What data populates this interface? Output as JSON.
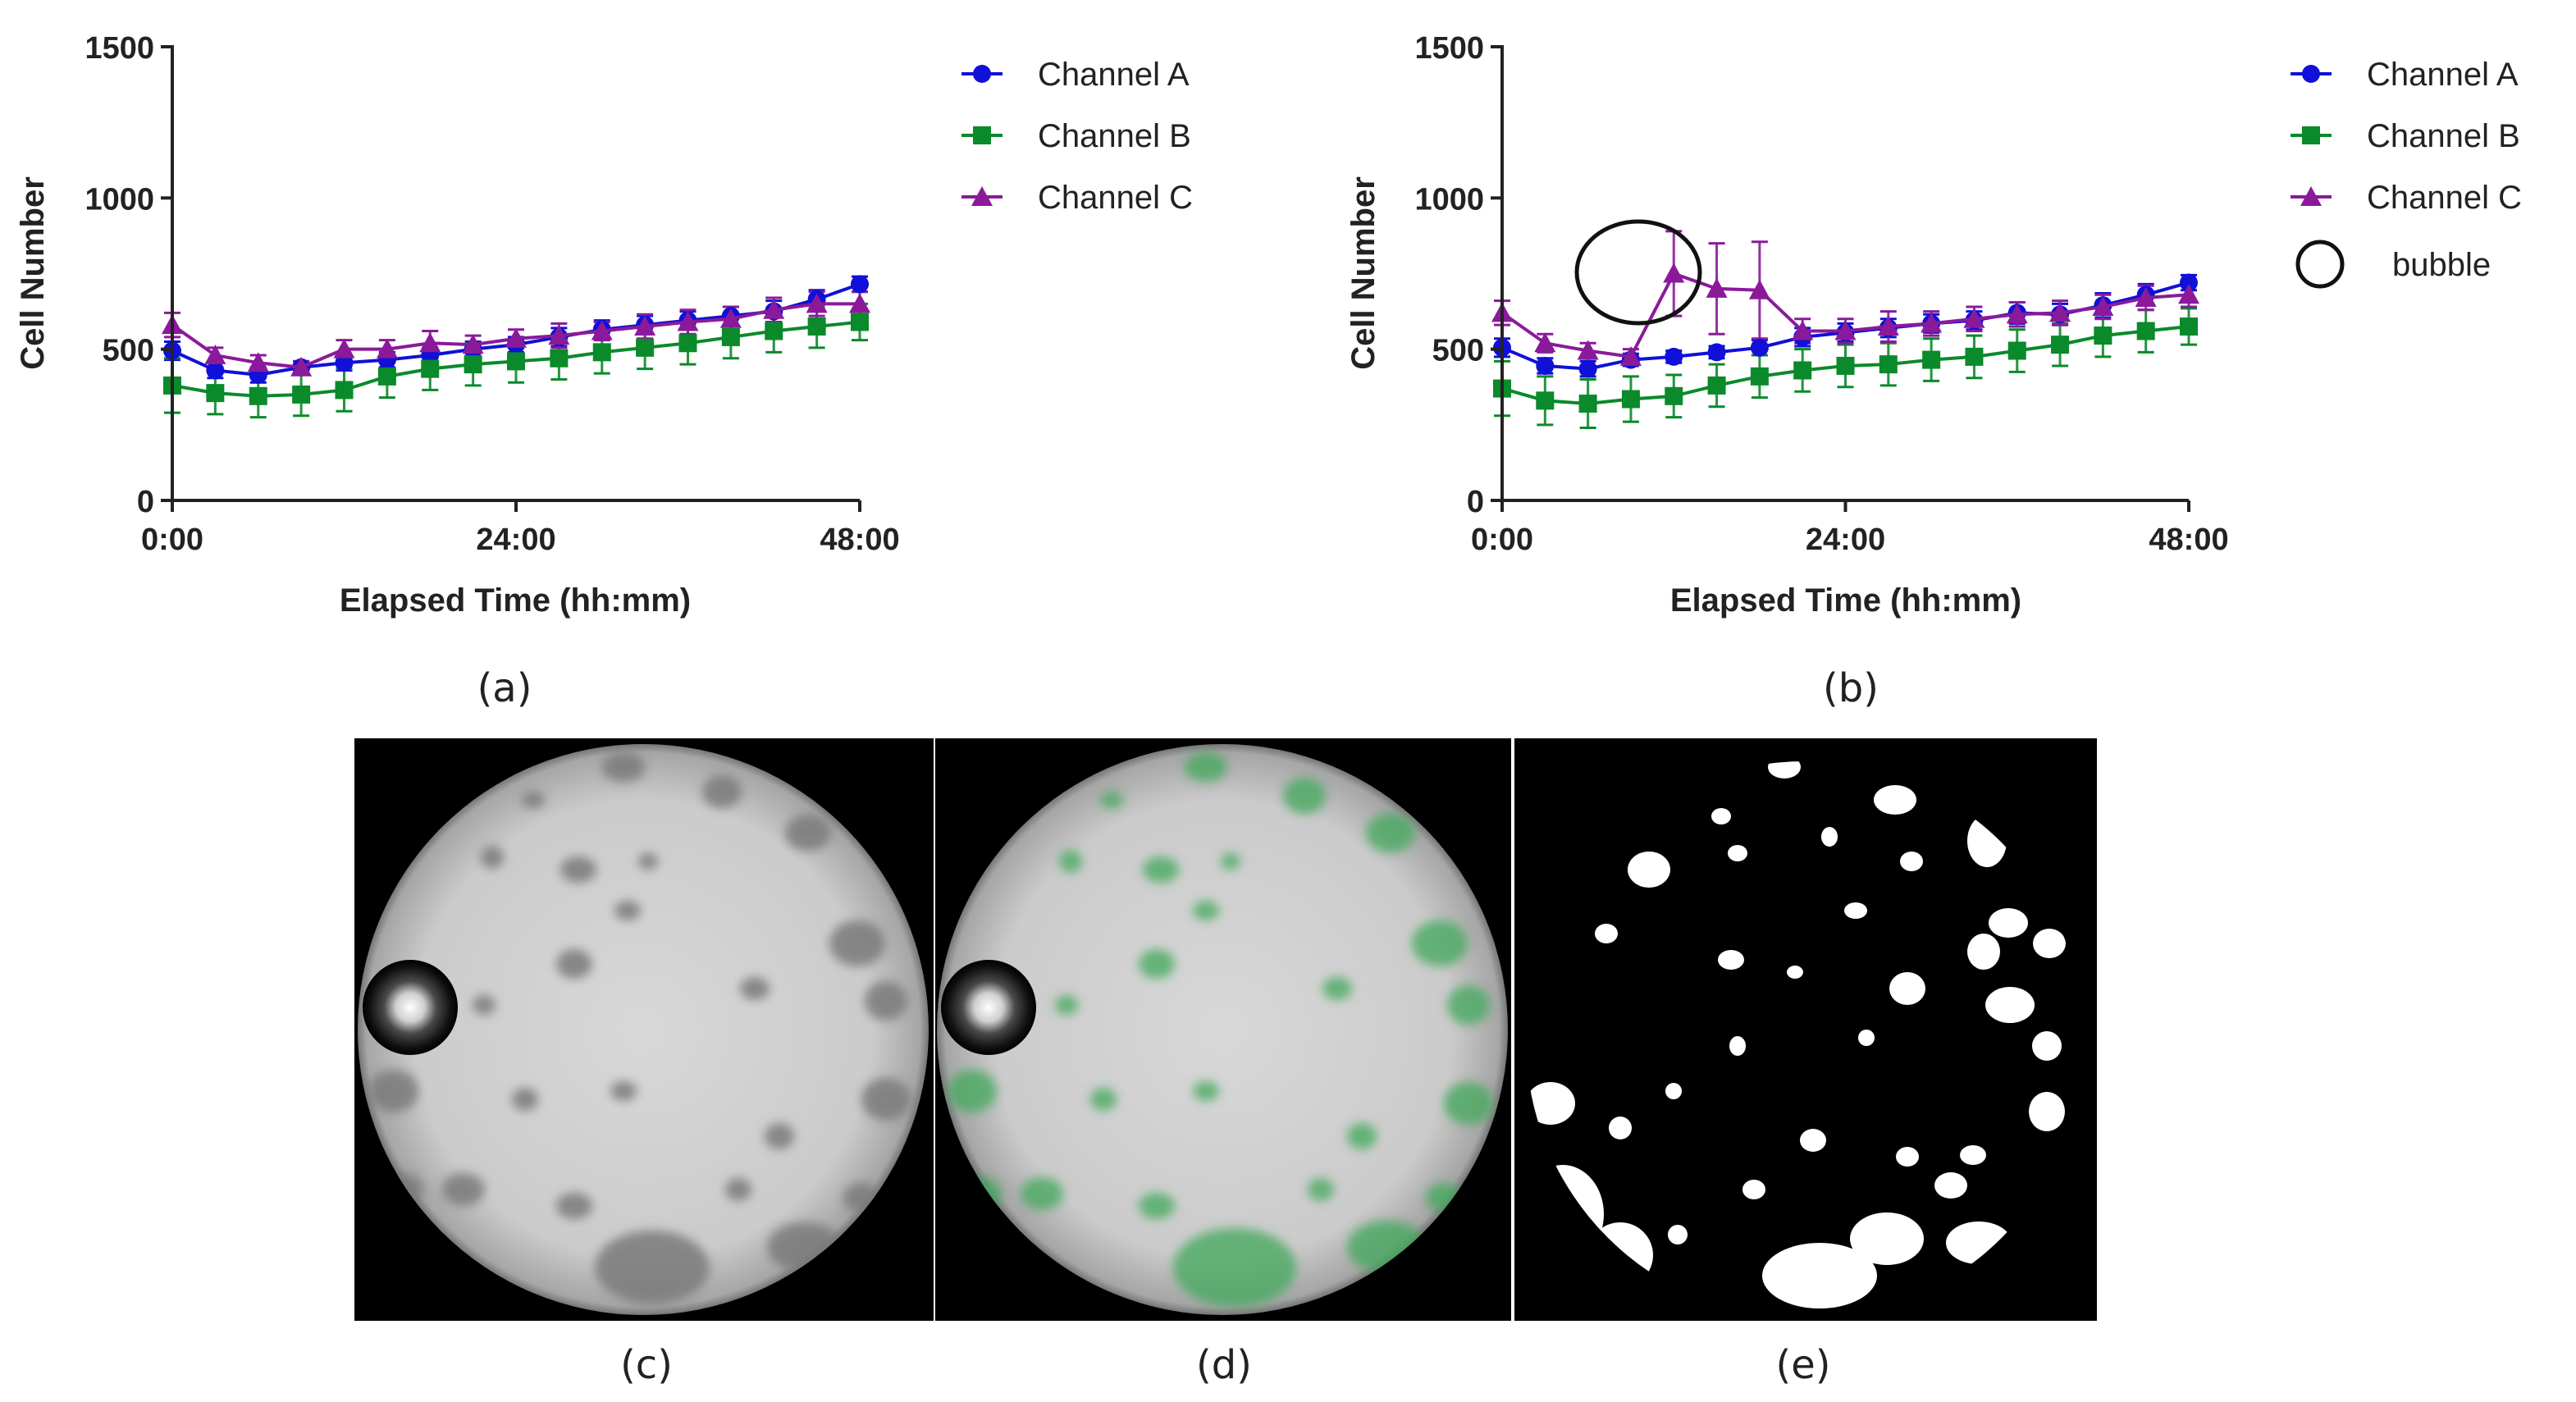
{
  "chart_data": [
    {
      "type": "line",
      "panel_label": "(a)",
      "xlabel": "Elapsed Time (hh:mm)",
      "ylabel": "Cell Number",
      "xlim": [
        0,
        48
      ],
      "ylim": [
        0,
        1500
      ],
      "xticks": [
        0,
        24,
        48
      ],
      "xtick_labels": [
        "0:00",
        "24:00",
        "48:00"
      ],
      "yticks": [
        0,
        500,
        1000,
        1500
      ],
      "ytick_labels": [
        "0",
        "500",
        "1000",
        "1500"
      ],
      "legend_position": "right",
      "x": [
        0,
        3,
        6,
        9,
        12,
        15,
        18,
        21,
        24,
        27,
        30,
        33,
        36,
        39,
        42,
        45,
        48
      ],
      "series": [
        {
          "name": "Channel A",
          "color": "#1010d8",
          "marker": "circle",
          "values": [
            495,
            430,
            415,
            440,
            455,
            465,
            480,
            500,
            515,
            540,
            565,
            580,
            595,
            610,
            625,
            665,
            715
          ],
          "errors": [
            30,
            25,
            25,
            20,
            25,
            25,
            25,
            25,
            25,
            30,
            30,
            30,
            30,
            30,
            35,
            30,
            25
          ]
        },
        {
          "name": "Channel B",
          "color": "#0a8a2a",
          "marker": "square",
          "values": [
            380,
            355,
            345,
            350,
            365,
            410,
            435,
            450,
            460,
            470,
            490,
            505,
            520,
            540,
            560,
            575,
            590
          ],
          "errors": [
            90,
            70,
            70,
            70,
            70,
            70,
            70,
            70,
            70,
            70,
            70,
            70,
            70,
            70,
            70,
            70,
            60
          ]
        },
        {
          "name": "Channel C",
          "color": "#8a1a9a",
          "marker": "triangle",
          "values": [
            580,
            480,
            455,
            440,
            500,
            500,
            520,
            515,
            535,
            545,
            560,
            575,
            590,
            600,
            630,
            650,
            650
          ],
          "errors": [
            40,
            25,
            25,
            20,
            30,
            30,
            40,
            30,
            30,
            40,
            30,
            40,
            40,
            40,
            40,
            40,
            40
          ]
        }
      ]
    },
    {
      "type": "line",
      "panel_label": "(b)",
      "xlabel": "Elapsed Time (hh:mm)",
      "ylabel": "Cell Number",
      "xlim": [
        0,
        48
      ],
      "ylim": [
        0,
        1500
      ],
      "xticks": [
        0,
        24,
        48
      ],
      "xtick_labels": [
        "0:00",
        "24:00",
        "48:00"
      ],
      "yticks": [
        0,
        500,
        1000,
        1500
      ],
      "ytick_labels": [
        "0",
        "500",
        "1000",
        "1500"
      ],
      "legend_position": "right",
      "x": [
        0,
        3,
        6,
        9,
        12,
        15,
        18,
        21,
        24,
        27,
        30,
        33,
        36,
        39,
        42,
        45,
        48
      ],
      "series": [
        {
          "name": "Channel A",
          "color": "#1010d8",
          "marker": "circle",
          "values": [
            505,
            445,
            435,
            465,
            475,
            490,
            505,
            540,
            555,
            570,
            585,
            595,
            620,
            615,
            645,
            680,
            720
          ],
          "errors": [
            30,
            25,
            25,
            20,
            20,
            20,
            25,
            30,
            30,
            30,
            30,
            30,
            35,
            35,
            40,
            35,
            25
          ]
        },
        {
          "name": "Channel B",
          "color": "#0a8a2a",
          "marker": "square",
          "values": [
            370,
            330,
            320,
            335,
            345,
            380,
            410,
            430,
            445,
            450,
            465,
            475,
            495,
            515,
            545,
            560,
            575
          ],
          "errors": [
            90,
            80,
            80,
            75,
            70,
            70,
            70,
            70,
            70,
            70,
            70,
            70,
            70,
            70,
            70,
            70,
            60
          ]
        },
        {
          "name": "Channel C",
          "color": "#8a1a9a",
          "marker": "triangle",
          "values": [
            620,
            520,
            495,
            475,
            750,
            700,
            695,
            560,
            560,
            575,
            585,
            600,
            615,
            620,
            640,
            670,
            680
          ],
          "errors": [
            40,
            30,
            25,
            25,
            140,
            150,
            160,
            40,
            40,
            50,
            40,
            40,
            40,
            40,
            40,
            40,
            40
          ]
        }
      ],
      "annotations": [
        {
          "shape": "circle",
          "label": "bubble",
          "x": 8.5,
          "y": 740
        }
      ]
    }
  ],
  "legend": {
    "channel_a": "Channel A",
    "channel_b": "Channel B",
    "channel_c": "Channel C",
    "bubble": "bubble"
  },
  "images": [
    {
      "label": "(c)",
      "description": "grayscale micrograph"
    },
    {
      "label": "(d)",
      "description": "green overlay micrograph"
    },
    {
      "label": "(e)",
      "description": "binary mask"
    }
  ],
  "colors": {
    "channel_a": "#1010d8",
    "channel_b": "#0a8a2a",
    "channel_c": "#8a1a9a",
    "mask_bg": "#000000",
    "mask_fg": "#ffffff",
    "overlay_green": "#3fa85a"
  }
}
